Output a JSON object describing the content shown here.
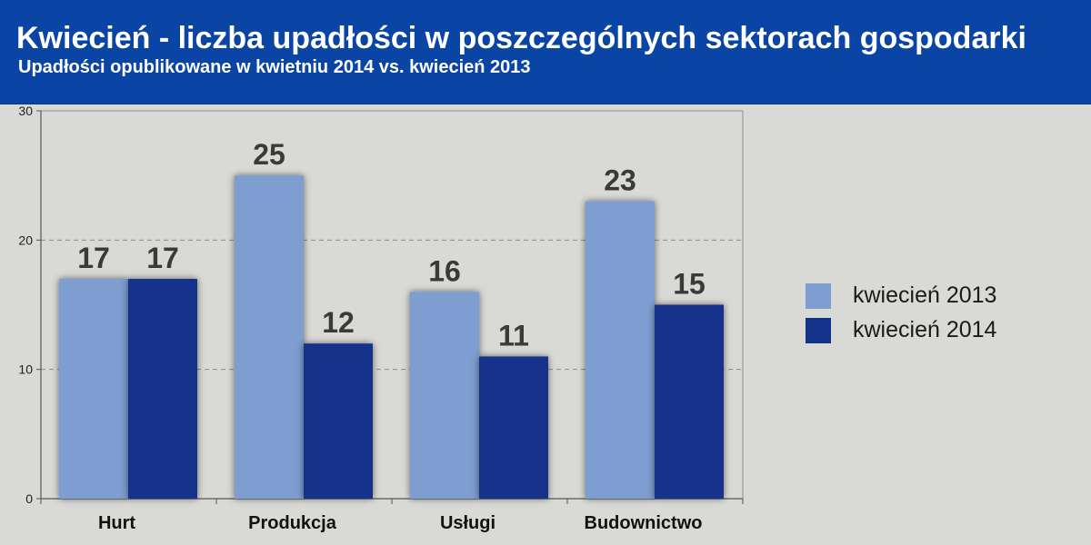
{
  "header": {
    "title": "Kwiecień - liczba upadłości w poszczególnych sektorach gospodarki",
    "subtitle": "Upadłości opublikowane w kwietniu 2014 vs. kwiecień 2013"
  },
  "chart_data": {
    "type": "bar",
    "categories": [
      "Hurt",
      "Produkcja",
      "Usługi",
      "Budownictwo"
    ],
    "series": [
      {
        "name": "kwiecień 2013",
        "values": [
          17,
          25,
          16,
          23
        ],
        "color": "#7e9dd0"
      },
      {
        "name": "kwiecień 2014",
        "values": [
          17,
          12,
          11,
          15
        ],
        "color": "#13338a"
      }
    ],
    "ylim": [
      0,
      30
    ],
    "yticks": [
      "0",
      "10",
      "20",
      "30"
    ],
    "grid": true,
    "legend_position": "right",
    "data_labels": true
  }
}
